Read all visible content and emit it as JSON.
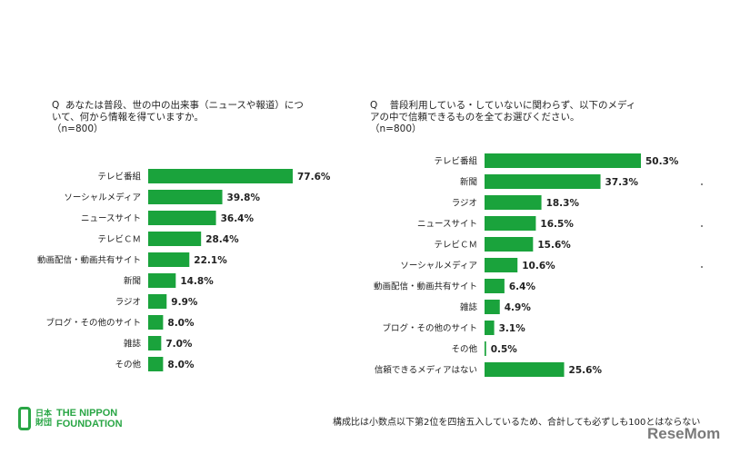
{
  "chart_data": [
    {
      "type": "bar",
      "title": "Q あなたは普段、世の中の出来事（ニュースや報道）について、何から情報を得ていますか。（n=800）",
      "title_lines": [
        "Q  あなたは普段、世の中の出来事（ニュースや報道）につ",
        "いて、何から情報を得ていますか。",
        "（n=800）"
      ],
      "orientation": "horizontal",
      "categories": [
        "テレビ番組",
        "ソーシャルメディア",
        "ニュースサイト",
        "テレビＣＭ",
        "動画配信・動画共有サイト",
        "新聞",
        "ラジオ",
        "ブログ・その他のサイト",
        "雑誌",
        "その他"
      ],
      "values": [
        77.6,
        39.8,
        36.4,
        28.4,
        22.1,
        14.8,
        9.9,
        8.0,
        7.0,
        8.0
      ],
      "value_labels": [
        "77.6%",
        "39.8%",
        "36.4%",
        "28.4%",
        "22.1%",
        "14.8%",
        "9.9%",
        "8.0%",
        "7.0%",
        "8.0%"
      ],
      "unit": "%",
      "color": "#1aa33c"
    },
    {
      "type": "bar",
      "title": "Q 普段利用している・していないに関わらず、以下のメディアの中で信頼できるものを全てお選びください。（n=800）",
      "title_lines": [
        "Q    普段利用している・していないに関わらず、以下のメディ",
        "アの中で信頼できるものを全てお選びください。",
        "（n=800）"
      ],
      "orientation": "horizontal",
      "categories": [
        "テレビ番組",
        "新聞",
        "ラジオ",
        "ニュースサイト",
        "テレビＣＭ",
        "ソーシャルメディア",
        "動画配信・動画共有サイト",
        "雑誌",
        "ブログ・その他のサイト",
        "その他",
        "信頼できるメディアはない"
      ],
      "values": [
        50.3,
        37.3,
        18.3,
        16.5,
        15.6,
        10.6,
        6.4,
        4.9,
        3.1,
        0.5,
        25.6
      ],
      "value_labels": [
        "50.3%",
        "37.3%",
        "18.3%",
        "16.5%",
        "15.6%",
        "10.6%",
        "6.4%",
        "4.9%",
        "3.1%",
        "0.5%",
        "25.6%"
      ],
      "unit": "%",
      "color": "#1aa33c"
    }
  ],
  "footnote": "構成比は小数点以下第2位を四捨五入しているため、合計しても必ずしも100とはならない",
  "logo": {
    "kanji_top": "日本",
    "kanji_bottom": "財団",
    "name_line1": "THE NIPPON",
    "name_line2": "FOUNDATION"
  },
  "watermark": "ReseMom"
}
